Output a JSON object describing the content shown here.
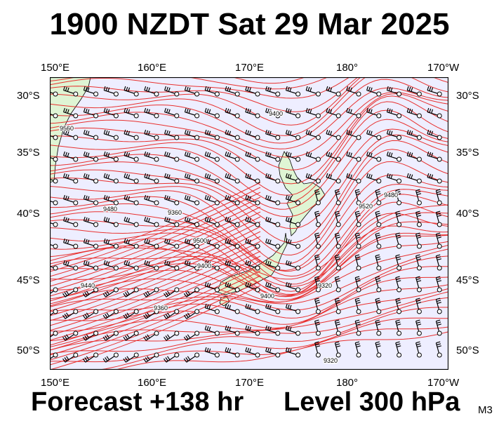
{
  "header": {
    "title": "1900 NZDT Sat 29 Mar 2025"
  },
  "footer": {
    "forecast": "Forecast +138 hr",
    "level": "Level 300 hPa",
    "model": "M3"
  },
  "axes": {
    "lon_labels": [
      "150°E",
      "160°E",
      "170°E",
      "180°",
      "170°W"
    ],
    "lat_labels": [
      "30°S",
      "35°S",
      "40°S",
      "45°S",
      "50°S"
    ]
  },
  "contour_labels": [
    "9560",
    "9400",
    "9440",
    "9400",
    "9360",
    "9320",
    "9400",
    "9360",
    "9320",
    "9480",
    "9480",
    "9520",
    "9500"
  ],
  "colors": {
    "contour": "#e8312f",
    "ocean": "#eeeeff",
    "land": "#dff5d4",
    "barb": "#000000"
  }
}
